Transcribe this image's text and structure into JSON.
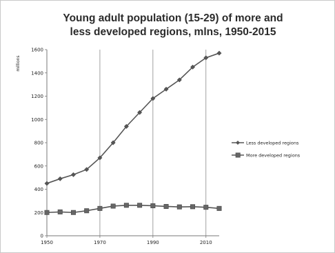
{
  "chart_data": {
    "type": "line",
    "title_lines": [
      "Young adult population (15-29) of more and",
      "less developed regions, mlns, 1950-2015"
    ],
    "ylabel": "millions",
    "xlabel": "",
    "x": [
      1950,
      1955,
      1960,
      1965,
      1970,
      1975,
      1980,
      1985,
      1990,
      1995,
      2000,
      2005,
      2010,
      2015
    ],
    "xlim": [
      1950,
      2015
    ],
    "ylim": [
      0,
      1600
    ],
    "yticks": [
      0,
      200,
      400,
      600,
      800,
      1000,
      1200,
      1400,
      1600
    ],
    "xticks": [
      1950,
      1970,
      1990,
      2010
    ],
    "xtick_labels": [
      "1950",
      "1970",
      "1990",
      "2010"
    ],
    "grid": "vertical",
    "legend_position": "right",
    "series": [
      {
        "name": "Less developed regions",
        "values": [
          450,
          490,
          525,
          570,
          670,
          800,
          940,
          1060,
          1180,
          1260,
          1340,
          1450,
          1530,
          1570
        ],
        "color": "#555555",
        "marker": "diamond"
      },
      {
        "name": "More developed regions",
        "values": [
          200,
          205,
          200,
          215,
          235,
          255,
          262,
          262,
          258,
          252,
          248,
          250,
          245,
          235
        ],
        "color": "#555555",
        "marker": "square"
      }
    ]
  }
}
